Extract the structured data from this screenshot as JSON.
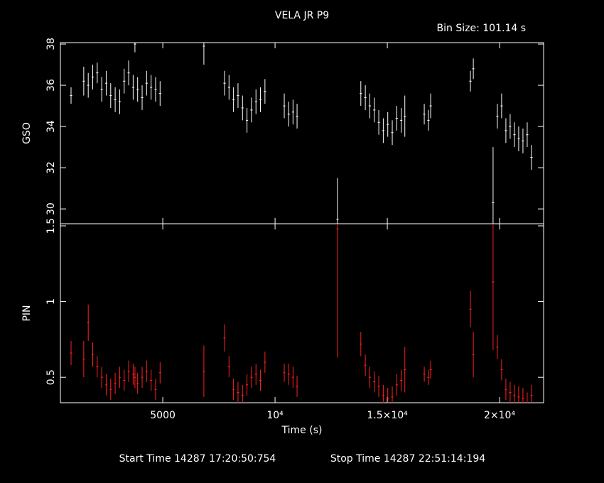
{
  "chart_data": {
    "type": "errorbar",
    "title": "VELA JR P9",
    "subtitle": "Bin Size: 101.14 s",
    "xlabel": "Time (s)",
    "footer": [
      "Start Time 14287 17:20:50:754",
      "Stop Time 14287 22:51:14:194"
    ],
    "xlim": [
      440,
      21960
    ],
    "xticks": [
      5000,
      {
        "value": 10000,
        "label": "10⁴"
      },
      {
        "value": 15000,
        "label": "1.5×10⁴"
      },
      {
        "value": 20000,
        "label": "2×10⁴"
      }
    ],
    "x": [
      915,
      1480,
      1680,
      1880,
      2080,
      2280,
      2480,
      2680,
      2880,
      3080,
      3280,
      3480,
      3680,
      3760,
      3880,
      4080,
      4280,
      4480,
      4680,
      4880,
      6830,
      7750,
      7950,
      8150,
      8350,
      8550,
      8750,
      8950,
      9150,
      9350,
      9550,
      10410,
      10610,
      10800,
      10980,
      12780,
      13820,
      14020,
      14220,
      14420,
      14620,
      14820,
      15020,
      15220,
      15420,
      15620,
      15780,
      16645,
      16830,
      16930,
      18700,
      18830,
      19710,
      19900,
      20090,
      20280,
      20470,
      20660,
      20850,
      21040,
      21230,
      21420
    ],
    "panels": [
      {
        "ylabel": "GSO",
        "color": "#ffffff",
        "ylim": [
          29.28,
          38.07
        ],
        "yticks": [
          30,
          32,
          34,
          36,
          38
        ],
        "values": [
          35.5,
          36.2,
          36.0,
          36.4,
          36.6,
          35.8,
          36.1,
          35.5,
          35.3,
          35.2,
          36.2,
          36.6,
          35.9,
          38.0,
          35.8,
          35.4,
          36.1,
          35.9,
          35.8,
          35.6,
          37.9,
          36.1,
          35.9,
          35.3,
          35.5,
          34.9,
          34.3,
          34.8,
          35.2,
          35.3,
          35.7,
          35.0,
          34.6,
          34.7,
          34.5,
          29.5,
          35.6,
          35.4,
          35.0,
          34.8,
          34.2,
          33.8,
          34.1,
          33.7,
          34.4,
          34.3,
          34.5,
          34.6,
          34.3,
          35.0,
          36.2,
          36.8,
          30.3,
          34.5,
          35.0,
          33.8,
          34.0,
          33.6,
          33.4,
          33.3,
          33.6,
          32.5
        ],
        "errors": [
          0.4,
          0.7,
          0.6,
          0.6,
          0.5,
          0.6,
          0.6,
          0.6,
          0.6,
          0.6,
          0.6,
          0.6,
          0.6,
          0.4,
          0.6,
          0.6,
          0.6,
          0.6,
          0.6,
          0.6,
          0.9,
          0.6,
          0.6,
          0.6,
          0.6,
          0.6,
          0.6,
          0.6,
          0.6,
          0.6,
          0.6,
          0.6,
          0.6,
          0.6,
          0.6,
          2.0,
          0.6,
          0.6,
          0.6,
          0.6,
          0.6,
          0.6,
          0.6,
          0.6,
          0.6,
          0.6,
          1.0,
          0.5,
          0.5,
          0.6,
          0.5,
          0.5,
          2.7,
          0.6,
          0.6,
          0.6,
          0.6,
          0.6,
          0.6,
          0.6,
          0.6,
          0.6
        ]
      },
      {
        "ylabel": "PIN",
        "color": "#ff2020",
        "ylim": [
          0.332,
          1.514
        ],
        "yticks": [
          0.5,
          1,
          1.5
        ],
        "values": [
          0.66,
          0.62,
          0.86,
          0.65,
          0.57,
          0.5,
          0.45,
          0.42,
          0.46,
          0.5,
          0.48,
          0.54,
          0.52,
          0.5,
          0.46,
          0.5,
          0.54,
          0.48,
          0.42,
          0.53,
          0.54,
          0.76,
          0.57,
          0.42,
          0.4,
          0.38,
          0.45,
          0.5,
          0.52,
          0.48,
          0.6,
          0.53,
          0.52,
          0.5,
          0.44,
          1.48,
          0.72,
          0.58,
          0.5,
          0.47,
          0.44,
          0.38,
          0.36,
          0.37,
          0.45,
          0.48,
          0.55,
          0.52,
          0.5,
          0.55,
          0.95,
          0.65,
          1.13,
          0.7,
          0.55,
          0.42,
          0.4,
          0.38,
          0.37,
          0.36,
          0.33,
          0.38
        ],
        "errors": [
          0.08,
          0.12,
          0.12,
          0.08,
          0.07,
          0.07,
          0.07,
          0.07,
          0.07,
          0.07,
          0.07,
          0.07,
          0.07,
          0.07,
          0.07,
          0.07,
          0.07,
          0.07,
          0.07,
          0.07,
          0.17,
          0.09,
          0.07,
          0.07,
          0.07,
          0.07,
          0.07,
          0.07,
          0.07,
          0.07,
          0.07,
          0.06,
          0.07,
          0.07,
          0.07,
          0.85,
          0.08,
          0.07,
          0.07,
          0.07,
          0.07,
          0.07,
          0.07,
          0.07,
          0.07,
          0.07,
          0.15,
          0.05,
          0.05,
          0.06,
          0.12,
          0.15,
          0.45,
          0.08,
          0.07,
          0.07,
          0.07,
          0.07,
          0.07,
          0.07,
          0.07,
          0.07
        ]
      }
    ]
  }
}
